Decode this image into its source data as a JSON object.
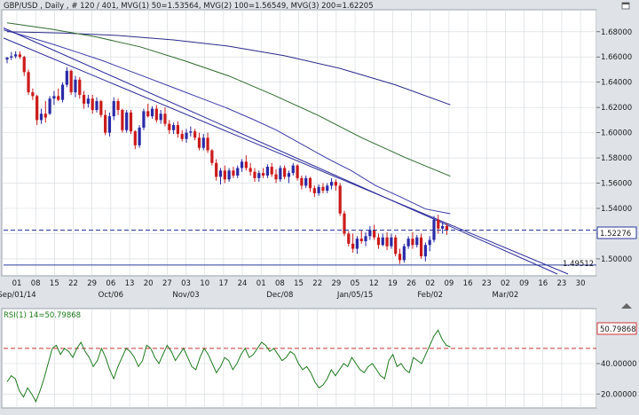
{
  "chart_data": [
    {
      "type": "candlestick",
      "header": {
        "symbol": "GBP/USD",
        "timeframe": "Daily",
        "bars": "# 120 / 401",
        "mvg1": "MVG(1) 50=1.53564",
        "mvg2": "MVG(2) 100=1.56549",
        "mvg3": "MVG(3) 200=1.62205"
      },
      "ylim": [
        1.488,
        1.696
      ],
      "yticks": [
        "1.68000",
        "1.66000",
        "1.64000",
        "1.62000",
        "1.60000",
        "1.58000",
        "1.56000",
        "1.54000",
        "1.52000",
        "1.50000"
      ],
      "current_price": "1.52276",
      "support_level": "1.49512",
      "xticks_day": [
        "01",
        "08",
        "15",
        "22",
        "29",
        "06",
        "13",
        "20",
        "27",
        "03",
        "10",
        "17",
        "24",
        "01",
        "08",
        "15",
        "22",
        "29",
        "05",
        "12",
        "19",
        "26",
        "02",
        "09",
        "16",
        "23",
        "02",
        "09",
        "16",
        "23",
        "30"
      ],
      "xticks_month": [
        "Sep/01/14",
        "Oct/06",
        "Nov/03",
        "Dec/08",
        "Jan/05/15",
        "Feb/02",
        "Mar/02"
      ],
      "candles": [
        {
          "o": 1.658,
          "h": 1.66,
          "l": 1.655,
          "c": 1.6595
        },
        {
          "o": 1.6595,
          "h": 1.664,
          "l": 1.6575,
          "c": 1.6605
        },
        {
          "o": 1.6605,
          "h": 1.6645,
          "l": 1.659,
          "c": 1.662
        },
        {
          "o": 1.662,
          "h": 1.6645,
          "l": 1.6585,
          "c": 1.66
        },
        {
          "o": 1.66,
          "h": 1.661,
          "l": 1.645,
          "c": 1.648
        },
        {
          "o": 1.648,
          "h": 1.65,
          "l": 1.63,
          "c": 1.632
        },
        {
          "o": 1.632,
          "h": 1.635,
          "l": 1.626,
          "c": 1.629
        },
        {
          "o": 1.629,
          "h": 1.63,
          "l": 1.606,
          "c": 1.61
        },
        {
          "o": 1.61,
          "h": 1.619,
          "l": 1.607,
          "c": 1.615
        },
        {
          "o": 1.615,
          "h": 1.625,
          "l": 1.608,
          "c": 1.612
        },
        {
          "o": 1.615,
          "h": 1.629,
          "l": 1.614,
          "c": 1.627
        },
        {
          "o": 1.627,
          "h": 1.633,
          "l": 1.622,
          "c": 1.629
        },
        {
          "o": 1.629,
          "h": 1.635,
          "l": 1.625,
          "c": 1.626
        },
        {
          "o": 1.626,
          "h": 1.64,
          "l": 1.624,
          "c": 1.638
        },
        {
          "o": 1.638,
          "h": 1.652,
          "l": 1.636,
          "c": 1.649
        },
        {
          "o": 1.649,
          "h": 1.65,
          "l": 1.63,
          "c": 1.632
        },
        {
          "o": 1.632,
          "h": 1.645,
          "l": 1.628,
          "c": 1.642
        },
        {
          "o": 1.642,
          "h": 1.644,
          "l": 1.627,
          "c": 1.63
        },
        {
          "o": 1.63,
          "h": 1.633,
          "l": 1.619,
          "c": 1.623
        },
        {
          "o": 1.623,
          "h": 1.63,
          "l": 1.62,
          "c": 1.627
        },
        {
          "o": 1.627,
          "h": 1.63,
          "l": 1.615,
          "c": 1.618
        },
        {
          "o": 1.618,
          "h": 1.628,
          "l": 1.616,
          "c": 1.625
        },
        {
          "o": 1.625,
          "h": 1.626,
          "l": 1.612,
          "c": 1.614
        },
        {
          "o": 1.614,
          "h": 1.618,
          "l": 1.598,
          "c": 1.6
        },
        {
          "o": 1.6,
          "h": 1.616,
          "l": 1.597,
          "c": 1.613
        },
        {
          "o": 1.613,
          "h": 1.628,
          "l": 1.61,
          "c": 1.625
        },
        {
          "o": 1.625,
          "h": 1.627,
          "l": 1.614,
          "c": 1.618
        },
        {
          "o": 1.618,
          "h": 1.619,
          "l": 1.6,
          "c": 1.602
        },
        {
          "o": 1.602,
          "h": 1.618,
          "l": 1.6,
          "c": 1.616
        },
        {
          "o": 1.616,
          "h": 1.618,
          "l": 1.599,
          "c": 1.601
        },
        {
          "o": 1.601,
          "h": 1.602,
          "l": 1.587,
          "c": 1.59
        },
        {
          "o": 1.59,
          "h": 1.606,
          "l": 1.588,
          "c": 1.604
        },
        {
          "o": 1.604,
          "h": 1.619,
          "l": 1.602,
          "c": 1.617
        },
        {
          "o": 1.617,
          "h": 1.623,
          "l": 1.612,
          "c": 1.613
        },
        {
          "o": 1.613,
          "h": 1.621,
          "l": 1.611,
          "c": 1.619
        },
        {
          "o": 1.619,
          "h": 1.622,
          "l": 1.608,
          "c": 1.61
        },
        {
          "o": 1.61,
          "h": 1.618,
          "l": 1.607,
          "c": 1.615
        },
        {
          "o": 1.615,
          "h": 1.62,
          "l": 1.605,
          "c": 1.607
        },
        {
          "o": 1.607,
          "h": 1.61,
          "l": 1.599,
          "c": 1.602
        },
        {
          "o": 1.602,
          "h": 1.608,
          "l": 1.599,
          "c": 1.606
        },
        {
          "o": 1.606,
          "h": 1.609,
          "l": 1.596,
          "c": 1.599
        },
        {
          "o": 1.599,
          "h": 1.602,
          "l": 1.593,
          "c": 1.595
        },
        {
          "o": 1.595,
          "h": 1.603,
          "l": 1.592,
          "c": 1.6
        },
        {
          "o": 1.6,
          "h": 1.605,
          "l": 1.597,
          "c": 1.601
        },
        {
          "o": 1.601,
          "h": 1.603,
          "l": 1.594,
          "c": 1.596
        },
        {
          "o": 1.596,
          "h": 1.6,
          "l": 1.586,
          "c": 1.588
        },
        {
          "o": 1.588,
          "h": 1.599,
          "l": 1.586,
          "c": 1.596
        },
        {
          "o": 1.596,
          "h": 1.6,
          "l": 1.584,
          "c": 1.586
        },
        {
          "o": 1.586,
          "h": 1.587,
          "l": 1.574,
          "c": 1.576
        },
        {
          "o": 1.576,
          "h": 1.579,
          "l": 1.562,
          "c": 1.565
        },
        {
          "o": 1.565,
          "h": 1.572,
          "l": 1.559,
          "c": 1.57
        },
        {
          "o": 1.57,
          "h": 1.574,
          "l": 1.56,
          "c": 1.563
        },
        {
          "o": 1.563,
          "h": 1.572,
          "l": 1.561,
          "c": 1.57
        },
        {
          "o": 1.57,
          "h": 1.573,
          "l": 1.564,
          "c": 1.566
        },
        {
          "o": 1.566,
          "h": 1.574,
          "l": 1.564,
          "c": 1.572
        },
        {
          "o": 1.572,
          "h": 1.579,
          "l": 1.569,
          "c": 1.577
        },
        {
          "o": 1.577,
          "h": 1.582,
          "l": 1.57,
          "c": 1.572
        },
        {
          "o": 1.572,
          "h": 1.576,
          "l": 1.566,
          "c": 1.569
        },
        {
          "o": 1.569,
          "h": 1.572,
          "l": 1.561,
          "c": 1.564
        },
        {
          "o": 1.564,
          "h": 1.57,
          "l": 1.561,
          "c": 1.568
        },
        {
          "o": 1.568,
          "h": 1.572,
          "l": 1.564,
          "c": 1.566
        },
        {
          "o": 1.566,
          "h": 1.575,
          "l": 1.564,
          "c": 1.573
        },
        {
          "o": 1.573,
          "h": 1.576,
          "l": 1.565,
          "c": 1.567
        },
        {
          "o": 1.567,
          "h": 1.571,
          "l": 1.56,
          "c": 1.563
        },
        {
          "o": 1.563,
          "h": 1.574,
          "l": 1.561,
          "c": 1.572
        },
        {
          "o": 1.572,
          "h": 1.574,
          "l": 1.563,
          "c": 1.565
        },
        {
          "o": 1.565,
          "h": 1.57,
          "l": 1.56,
          "c": 1.568
        },
        {
          "o": 1.568,
          "h": 1.576,
          "l": 1.566,
          "c": 1.574
        },
        {
          "o": 1.574,
          "h": 1.575,
          "l": 1.562,
          "c": 1.564
        },
        {
          "o": 1.564,
          "h": 1.566,
          "l": 1.555,
          "c": 1.558
        },
        {
          "o": 1.558,
          "h": 1.566,
          "l": 1.556,
          "c": 1.564
        },
        {
          "o": 1.564,
          "h": 1.565,
          "l": 1.553,
          "c": 1.556
        },
        {
          "o": 1.556,
          "h": 1.558,
          "l": 1.549,
          "c": 1.552
        },
        {
          "o": 1.552,
          "h": 1.559,
          "l": 1.55,
          "c": 1.557
        },
        {
          "o": 1.557,
          "h": 1.56,
          "l": 1.552,
          "c": 1.554
        },
        {
          "o": 1.554,
          "h": 1.56,
          "l": 1.552,
          "c": 1.558
        },
        {
          "o": 1.558,
          "h": 1.564,
          "l": 1.555,
          "c": 1.561
        },
        {
          "o": 1.561,
          "h": 1.563,
          "l": 1.554,
          "c": 1.558
        },
        {
          "o": 1.558,
          "h": 1.56,
          "l": 1.534,
          "c": 1.536
        },
        {
          "o": 1.536,
          "h": 1.538,
          "l": 1.518,
          "c": 1.52
        },
        {
          "o": 1.52,
          "h": 1.522,
          "l": 1.51,
          "c": 1.512
        },
        {
          "o": 1.512,
          "h": 1.52,
          "l": 1.505,
          "c": 1.508
        },
        {
          "o": 1.508,
          "h": 1.518,
          "l": 1.504,
          "c": 1.516
        },
        {
          "o": 1.516,
          "h": 1.523,
          "l": 1.512,
          "c": 1.514
        },
        {
          "o": 1.514,
          "h": 1.521,
          "l": 1.51,
          "c": 1.518
        },
        {
          "o": 1.518,
          "h": 1.526,
          "l": 1.515,
          "c": 1.523
        },
        {
          "o": 1.523,
          "h": 1.527,
          "l": 1.515,
          "c": 1.517
        },
        {
          "o": 1.517,
          "h": 1.52,
          "l": 1.508,
          "c": 1.511
        },
        {
          "o": 1.511,
          "h": 1.52,
          "l": 1.51,
          "c": 1.517
        },
        {
          "o": 1.517,
          "h": 1.521,
          "l": 1.507,
          "c": 1.51
        },
        {
          "o": 1.51,
          "h": 1.52,
          "l": 1.508,
          "c": 1.517
        },
        {
          "o": 1.517,
          "h": 1.519,
          "l": 1.502,
          "c": 1.504
        },
        {
          "o": 1.504,
          "h": 1.508,
          "l": 1.496,
          "c": 1.499
        },
        {
          "o": 1.499,
          "h": 1.512,
          "l": 1.497,
          "c": 1.51
        },
        {
          "o": 1.51,
          "h": 1.518,
          "l": 1.508,
          "c": 1.516
        },
        {
          "o": 1.516,
          "h": 1.521,
          "l": 1.508,
          "c": 1.511
        },
        {
          "o": 1.511,
          "h": 1.519,
          "l": 1.509,
          "c": 1.517
        },
        {
          "o": 1.517,
          "h": 1.52,
          "l": 1.5,
          "c": 1.502
        },
        {
          "o": 1.502,
          "h": 1.513,
          "l": 1.498,
          "c": 1.511
        },
        {
          "o": 1.511,
          "h": 1.518,
          "l": 1.506,
          "c": 1.515
        },
        {
          "o": 1.515,
          "h": 1.534,
          "l": 1.513,
          "c": 1.531
        },
        {
          "o": 1.531,
          "h": 1.535,
          "l": 1.52,
          "c": 1.524
        },
        {
          "o": 1.524,
          "h": 1.529,
          "l": 1.52,
          "c": 1.526
        },
        {
          "o": 1.526,
          "h": 1.528,
          "l": 1.519,
          "c": 1.5228
        }
      ],
      "mvg1_values": [
        1.6815,
        1.6759,
        1.67,
        1.6635,
        1.657,
        1.6495,
        1.642,
        1.6345,
        1.627,
        1.6195,
        1.611,
        1.602,
        1.591,
        1.58,
        1.57,
        1.558,
        1.549,
        1.5395,
        1.5358
      ],
      "mvg2_values": [
        1.687,
        1.682,
        1.676,
        1.668,
        1.657,
        1.645,
        1.63,
        1.614,
        1.596,
        1.58,
        1.5655
      ],
      "mvg3_values": [
        1.68,
        1.679,
        1.677,
        1.6735,
        1.6685,
        1.661,
        1.651,
        1.638,
        1.6221
      ],
      "trendlines": [
        {
          "name": "upper trendline",
          "from": [
            1.678
          ],
          "to": [
            1.488
          ]
        },
        {
          "name": "lower trendline",
          "from": [
            1.679
          ],
          "to": [
            1.492
          ]
        }
      ]
    },
    {
      "type": "line",
      "label": "RSI(1) 14=50.79868",
      "ylim": [
        12,
        75
      ],
      "yticks": [
        "40.00000",
        "20.00000"
      ],
      "current_value": "50.79868",
      "overbought_level": 50,
      "values": [
        28,
        32,
        30,
        22,
        18,
        24,
        20,
        15,
        22,
        30,
        40,
        50,
        52,
        46,
        50,
        48,
        44,
        50,
        54,
        48,
        44,
        38,
        42,
        50,
        44,
        36,
        30,
        38,
        44,
        50,
        48,
        44,
        38,
        42,
        52,
        50,
        44,
        40,
        46,
        52,
        48,
        42,
        46,
        50,
        44,
        38,
        36,
        44,
        50,
        46,
        40,
        34,
        38,
        44,
        42,
        36,
        40,
        46,
        50,
        44,
        46,
        50,
        54,
        52,
        48,
        50,
        46,
        42,
        44,
        48,
        46,
        40,
        36,
        38,
        34,
        28,
        24,
        26,
        30,
        36,
        32,
        36,
        40,
        38,
        44,
        40,
        36,
        34,
        38,
        40,
        36,
        32,
        30,
        42,
        46,
        38,
        40,
        36,
        34,
        44,
        42,
        40,
        46,
        52,
        58,
        62,
        56,
        52,
        51
      ]
    }
  ]
}
